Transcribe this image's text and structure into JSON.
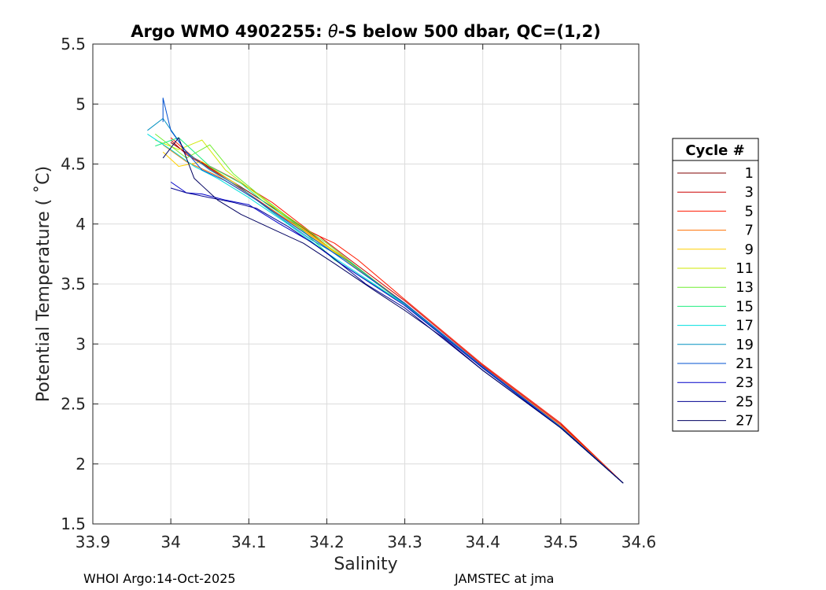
{
  "chart_data": {
    "type": "line",
    "title_prefix": "Argo WMO 4902255: ",
    "title_theta": "θ",
    "title_suffix": "-S below 500 dbar,  QC=(1,2)",
    "xlabel": "Salinity",
    "ylabel": "Potential Temperature ( ˚C)",
    "xlim": [
      33.9,
      34.6
    ],
    "ylim": [
      1.5,
      5.5
    ],
    "x_ticks": [
      "33.9",
      "34",
      "34.1",
      "34.2",
      "34.3",
      "34.4",
      "34.5",
      "34.6"
    ],
    "y_ticks": [
      "1.5",
      "2",
      "2.5",
      "3",
      "3.5",
      "4",
      "4.5",
      "5",
      "5.5"
    ],
    "grid": true,
    "legend_title": "Cycle #",
    "legend_position": "right-outside",
    "series": [
      {
        "name": "1",
        "color": "#800000",
        "x": [
          34.0,
          34.03,
          34.08,
          34.14,
          34.18,
          34.22,
          34.3,
          34.4,
          34.5,
          34.58
        ],
        "y": [
          4.68,
          4.55,
          4.35,
          4.1,
          3.92,
          3.72,
          3.33,
          2.8,
          2.3,
          1.84
        ]
      },
      {
        "name": "3",
        "color": "#cc0000",
        "x": [
          34.0,
          34.02,
          34.06,
          34.1,
          34.15,
          34.19,
          34.23,
          34.3,
          34.4,
          34.5,
          34.58
        ],
        "y": [
          4.7,
          4.58,
          4.42,
          4.25,
          4.03,
          3.9,
          3.7,
          3.36,
          2.82,
          2.33,
          1.84
        ]
      },
      {
        "name": "5",
        "color": "#ff1a00",
        "x": [
          34.0,
          34.03,
          34.08,
          34.13,
          34.18,
          34.21,
          34.24,
          34.3,
          34.4,
          34.5,
          34.58
        ],
        "y": [
          4.72,
          4.55,
          4.38,
          4.18,
          3.93,
          3.84,
          3.7,
          3.37,
          2.83,
          2.34,
          1.84
        ]
      },
      {
        "name": "7",
        "color": "#ff7000",
        "x": [
          33.99,
          34.02,
          34.06,
          34.11,
          34.17,
          34.22,
          34.3,
          34.4,
          34.5,
          34.58
        ],
        "y": [
          4.66,
          4.52,
          4.4,
          4.2,
          3.95,
          3.73,
          3.34,
          2.81,
          2.32,
          1.84
        ]
      },
      {
        "name": "9",
        "color": "#ffcf00",
        "x": [
          33.99,
          34.01,
          34.04,
          34.08,
          34.12,
          34.17,
          34.22,
          34.3,
          34.4,
          34.5,
          34.58
        ],
        "y": [
          4.6,
          4.48,
          4.52,
          4.35,
          4.15,
          3.94,
          3.72,
          3.33,
          2.8,
          2.3,
          1.84
        ]
      },
      {
        "name": "11",
        "color": "#cfe800",
        "x": [
          33.98,
          34.01,
          34.04,
          34.07,
          34.1,
          34.15,
          34.2,
          34.3,
          34.4,
          34.5,
          34.58
        ],
        "y": [
          4.7,
          4.62,
          4.7,
          4.45,
          4.3,
          4.05,
          3.82,
          3.33,
          2.8,
          2.3,
          1.84
        ]
      },
      {
        "name": "13",
        "color": "#70ee30",
        "x": [
          33.98,
          34.02,
          34.05,
          34.08,
          34.11,
          34.15,
          34.2,
          34.3,
          34.4,
          34.5,
          34.58
        ],
        "y": [
          4.75,
          4.55,
          4.66,
          4.42,
          4.26,
          4.06,
          3.84,
          3.33,
          2.8,
          2.3,
          1.84
        ]
      },
      {
        "name": "15",
        "color": "#20ee80",
        "x": [
          33.98,
          34.01,
          34.05,
          34.09,
          34.12,
          34.16,
          34.21,
          34.3,
          34.4,
          34.5,
          34.58
        ],
        "y": [
          4.65,
          4.72,
          4.48,
          4.34,
          4.18,
          4.0,
          3.7,
          3.33,
          2.8,
          2.3,
          1.84
        ]
      },
      {
        "name": "17",
        "color": "#00dfdf",
        "x": [
          33.97,
          34.0,
          34.03,
          34.06,
          34.1,
          34.15,
          34.2,
          34.3,
          34.4,
          34.5,
          34.58
        ],
        "y": [
          4.75,
          4.62,
          4.48,
          4.38,
          4.22,
          4.0,
          3.76,
          3.33,
          2.8,
          2.3,
          1.84
        ]
      },
      {
        "name": "19",
        "color": "#0090c0",
        "x": [
          33.97,
          33.99,
          34.02,
          34.05,
          34.09,
          34.13,
          34.18,
          34.23,
          34.3,
          34.4,
          34.5,
          34.58
        ],
        "y": [
          4.78,
          4.88,
          4.6,
          4.45,
          4.3,
          4.1,
          3.87,
          3.68,
          3.33,
          2.8,
          2.3,
          1.84
        ]
      },
      {
        "name": "21",
        "color": "#0050d0",
        "x": [
          33.99,
          33.99,
          34.0,
          34.02,
          34.04,
          34.07,
          34.11,
          34.15,
          34.2,
          34.3,
          34.4,
          34.5,
          34.58
        ],
        "y": [
          4.85,
          5.05,
          4.78,
          4.6,
          4.45,
          4.36,
          4.2,
          4.02,
          3.8,
          3.34,
          2.81,
          2.31,
          1.84
        ]
      },
      {
        "name": "23",
        "color": "#0000c8",
        "x": [
          34.0,
          34.02,
          34.04,
          34.07,
          34.1,
          34.14,
          34.18,
          34.22,
          34.3,
          34.4,
          34.5,
          34.58
        ],
        "y": [
          4.35,
          4.26,
          4.25,
          4.2,
          4.16,
          4.0,
          3.85,
          3.66,
          3.32,
          2.8,
          2.3,
          1.84
        ]
      },
      {
        "name": "25",
        "color": "#000090",
        "x": [
          34.0,
          34.02,
          34.05,
          34.08,
          34.11,
          34.15,
          34.2,
          34.25,
          34.3,
          34.4,
          34.5,
          34.58
        ],
        "y": [
          4.3,
          4.26,
          4.22,
          4.18,
          4.13,
          3.98,
          3.76,
          3.5,
          3.3,
          2.78,
          2.3,
          1.84
        ]
      },
      {
        "name": "27",
        "color": "#000060",
        "x": [
          33.99,
          34.01,
          34.03,
          34.06,
          34.09,
          34.13,
          34.17,
          34.21,
          34.26,
          34.3,
          34.35,
          34.4,
          34.5,
          34.58
        ],
        "y": [
          4.55,
          4.72,
          4.38,
          4.2,
          4.08,
          3.96,
          3.84,
          3.67,
          3.45,
          3.28,
          3.05,
          2.78,
          2.3,
          1.84
        ]
      }
    ]
  },
  "footer": {
    "left": "WHOI Argo:14-Oct-2025",
    "right": "JAMSTEC at jma"
  }
}
